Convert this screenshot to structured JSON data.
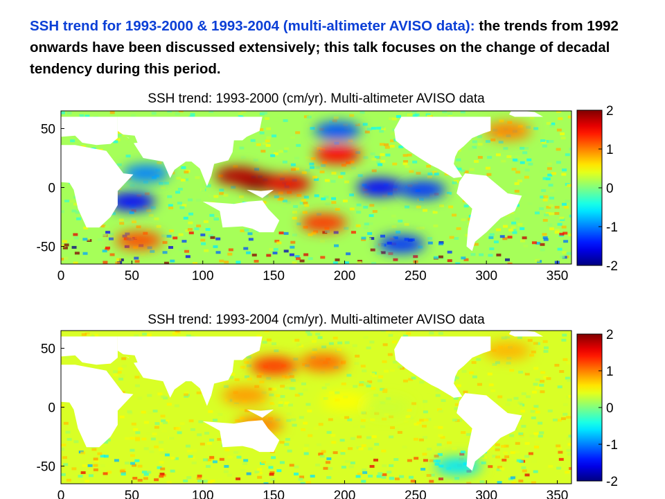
{
  "slide": {
    "heading_colored": "SSH trend for 1993-2000 & 1993-2004 (multi-altimeter AVISO data):",
    "heading_rest": " the trends from 1992 onwards have been discussed extensively; this talk focuses on the change of decadal tendency during this period.",
    "colors": {
      "heading": "#0b3fd6",
      "body": "#000000"
    }
  },
  "chart_data": [
    {
      "type": "heatmap",
      "title": "SSH trend: 1993-2000 (cm/yr). Multi-altimeter AVISO data",
      "x_ticks": [
        0,
        50,
        100,
        150,
        200,
        250,
        300,
        350
      ],
      "y_ticks": [
        50,
        0,
        -50
      ],
      "xlim": [
        0,
        360
      ],
      "ylim": [
        -65,
        65
      ],
      "colorbar": {
        "ticks": [
          2,
          1,
          0,
          -1,
          -2
        ],
        "range": [
          -2,
          2
        ],
        "colormap": "jet"
      },
      "features": [
        {
          "lon": 140,
          "lat": 5,
          "value": 2.0
        },
        {
          "lon": 125,
          "lat": 10,
          "value": 1.8
        },
        {
          "lon": 160,
          "lat": 3,
          "value": 1.6
        },
        {
          "lon": 195,
          "lat": 28,
          "value": 1.5
        },
        {
          "lon": 225,
          "lat": 0,
          "value": -1.5
        },
        {
          "lon": 255,
          "lat": -2,
          "value": -1.3
        },
        {
          "lon": 195,
          "lat": 48,
          "value": -1.2
        },
        {
          "lon": 60,
          "lat": 12,
          "value": -1.0
        },
        {
          "lon": 50,
          "lat": -12,
          "value": -1.5
        },
        {
          "lon": 185,
          "lat": -30,
          "value": 1.3
        },
        {
          "lon": 240,
          "lat": -48,
          "value": -1.3
        },
        {
          "lon": 315,
          "lat": 48,
          "value": 1.0
        },
        {
          "lon": 55,
          "lat": -45,
          "value": 1.2
        }
      ]
    },
    {
      "type": "heatmap",
      "title": "SSH trend: 1993-2004 (cm/yr). Multi-altimeter AVISO data",
      "x_ticks": [
        0,
        50,
        100,
        150,
        200,
        250,
        300,
        350
      ],
      "y_ticks": [
        50,
        0,
        -50
      ],
      "xlim": [
        0,
        360
      ],
      "ylim": [
        -65,
        65
      ],
      "colorbar": {
        "ticks": [
          2,
          1,
          0,
          -1,
          -2
        ],
        "range": [
          -2,
          2
        ],
        "colormap": "jet"
      },
      "features": [
        {
          "lon": 150,
          "lat": 35,
          "value": 1.3
        },
        {
          "lon": 185,
          "lat": 38,
          "value": 1.1
        },
        {
          "lon": 140,
          "lat": -15,
          "value": 1.0
        },
        {
          "lon": 130,
          "lat": 10,
          "value": 0.9
        },
        {
          "lon": 200,
          "lat": 5,
          "value": 0.5
        },
        {
          "lon": 230,
          "lat": 0,
          "value": 0.3
        },
        {
          "lon": 315,
          "lat": 48,
          "value": 0.8
        },
        {
          "lon": 280,
          "lat": -50,
          "value": -0.6
        }
      ]
    }
  ]
}
